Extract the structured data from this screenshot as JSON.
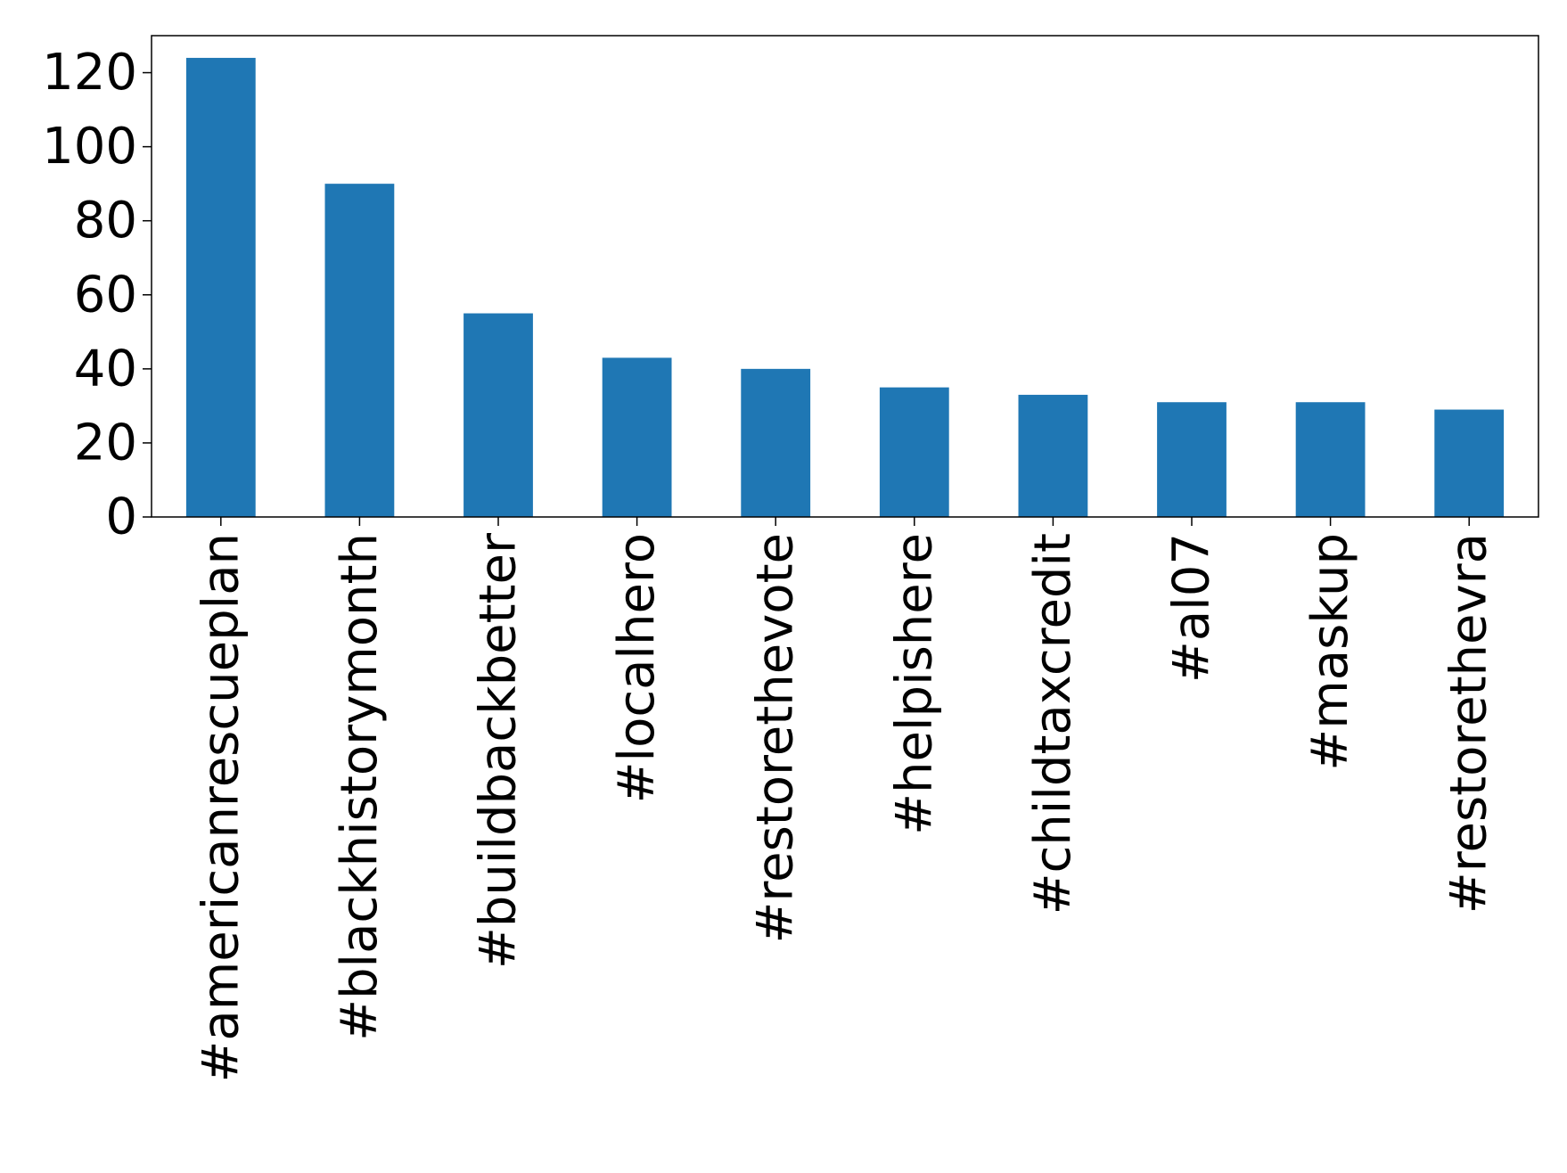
{
  "chart_data": {
    "type": "bar",
    "title": "",
    "xlabel": "",
    "ylabel": "",
    "categories": [
      "#americanrescueplan",
      "#blackhistorymonth",
      "#buildbackbetter",
      "#localhero",
      "#restorethevote",
      "#helpishere",
      "#childtaxcredit",
      "#al07",
      "#maskup",
      "#restorethevra"
    ],
    "values": [
      124,
      90,
      55,
      43,
      40,
      35,
      33,
      31,
      31,
      29
    ],
    "ylim": [
      0,
      130
    ],
    "yticks": [
      0,
      20,
      40,
      60,
      80,
      100,
      120
    ],
    "ytick_labels": [
      "0",
      "20",
      "40",
      "60",
      "80",
      "100",
      "120"
    ],
    "bar_color": "#1f77b4",
    "grid": false,
    "legend": "none"
  }
}
